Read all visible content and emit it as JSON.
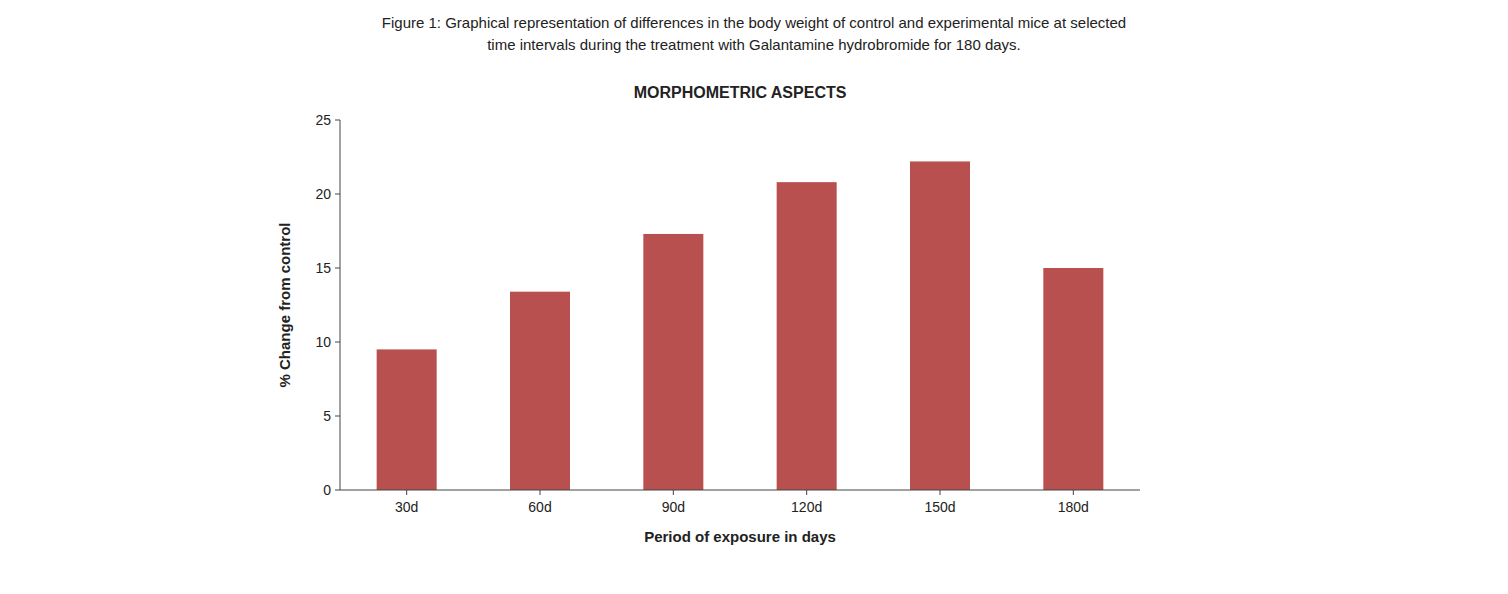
{
  "chart_data": {
    "type": "bar",
    "title": "MORPHOMETRIC ASPECTS",
    "annotations": [
      "Figure 1: Graphical representation of differences in the body weight of control and experimental mice at selected",
      "time intervals during the treatment with Galantamine hydrobromide for 180 days."
    ],
    "xlabel": "Period of exposure in days",
    "ylabel": "% Change from control",
    "categories": [
      "30d",
      "60d",
      "90d",
      "120d",
      "150d",
      "180d"
    ],
    "values": [
      9.5,
      13.4,
      17.3,
      20.8,
      22.2,
      15.0
    ],
    "color": "#b85050",
    "ylim": [
      0,
      25
    ],
    "yticks": [
      0,
      5,
      10,
      15,
      20,
      25
    ],
    "grid": false
  }
}
